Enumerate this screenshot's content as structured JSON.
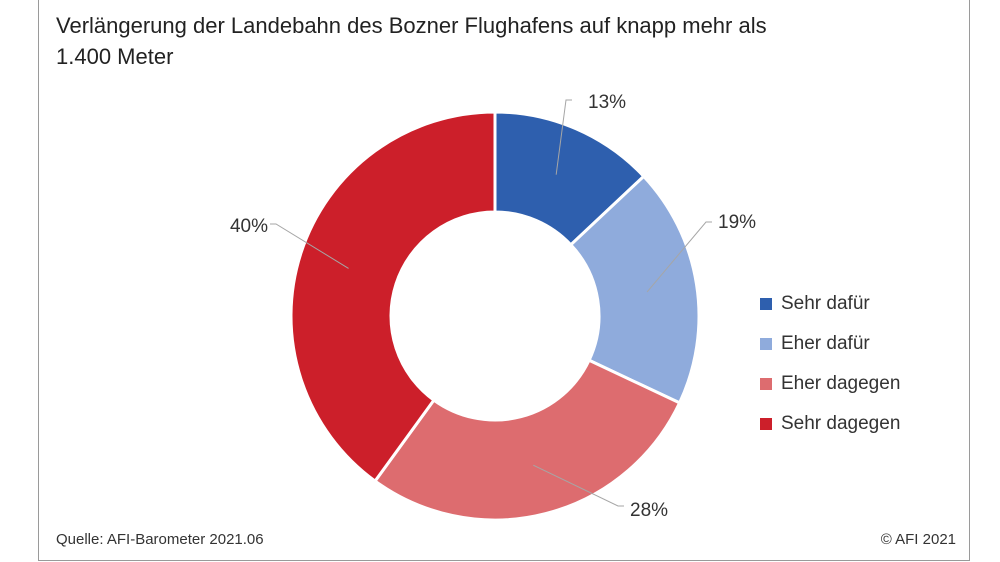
{
  "title": "Verlängerung der Landebahn des Bozner Flughafens auf knapp mehr als 1.400 Meter",
  "source": "Quelle: AFI-Barometer 2021.06",
  "copyright": "© AFI 2021",
  "chart_data": {
    "type": "pie",
    "variant": "donut",
    "title": "Verlängerung der Landebahn des Bozner Flughafens auf knapp mehr als 1.400 Meter",
    "categories": [
      "Sehr dafür",
      "Eher dafür",
      "Eher dagegen",
      "Sehr dagegen"
    ],
    "values": [
      13,
      19,
      28,
      40
    ],
    "labels": [
      "13%",
      "19%",
      "28%",
      "40%"
    ],
    "colors": [
      "#2e5fae",
      "#8fabdc",
      "#dd6c6f",
      "#cc1f2a"
    ],
    "legend_position": "right"
  }
}
